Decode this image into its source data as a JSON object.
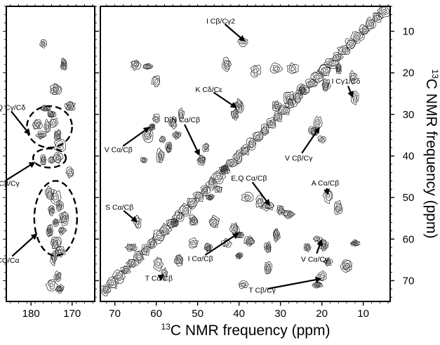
{
  "chart_data": [
    {
      "type": "heatmap",
      "panel": "left",
      "title": "",
      "xlabel": "",
      "ylabel": "",
      "x_ticks": [
        180,
        170
      ],
      "xlim": [
        186,
        164.5
      ],
      "ylim": [
        4,
        75
      ],
      "annotations": [
        {
          "text": "E,Q Cγ/Cδ",
          "x": 175.5,
          "y": 33
        },
        {
          "text": "D,N Cβ/Cγ",
          "x": 175.5,
          "y": 40.5
        },
        {
          "text": "CO/Cα",
          "x": 174,
          "y": 55
        }
      ],
      "peak_regions": [
        {
          "label": "E,Q Cγ/Cδ",
          "cx": 175.5,
          "cy": 33,
          "rx": 5.5,
          "ry": 5
        },
        {
          "label": "D,N Cβ/Cγ",
          "cx": 175.5,
          "cy": 40.5,
          "rx": 4,
          "ry": 2.3
        },
        {
          "label": "CO/Cα",
          "cx": 174,
          "cy": 55,
          "rx": 5.2,
          "ry": 9
        }
      ],
      "peaks": [
        [
          176,
          33
        ],
        [
          174.5,
          32
        ],
        [
          177.5,
          35
        ],
        [
          175,
          30
        ],
        [
          173.5,
          35
        ],
        [
          178.5,
          32.5
        ],
        [
          176.5,
          28.5
        ],
        [
          173,
          37.5
        ],
        [
          175,
          41
        ],
        [
          177,
          41
        ],
        [
          173.5,
          40.5
        ],
        [
          174,
          50
        ],
        [
          173,
          52
        ],
        [
          175,
          53
        ],
        [
          174,
          56
        ],
        [
          172.5,
          58
        ],
        [
          175.5,
          58
        ],
        [
          174,
          61
        ],
        [
          173,
          63
        ],
        [
          175.5,
          49
        ],
        [
          172,
          55
        ],
        [
          174.5,
          64.5
        ],
        [
          173.5,
          69
        ],
        [
          173,
          72
        ],
        [
          175,
          71
        ],
        [
          177,
          13
        ],
        [
          172,
          18
        ],
        [
          174,
          24
        ],
        [
          170.5,
          28
        ],
        [
          170.5,
          44
        ]
      ]
    },
    {
      "type": "heatmap",
      "panel": "right",
      "title": "",
      "xlabel": "13C NMR frequency (ppm)",
      "ylabel": "13C NMR frequency (ppm)",
      "x_ticks": [
        70,
        60,
        50,
        40,
        30,
        20,
        10
      ],
      "y_ticks": [
        10,
        20,
        30,
        40,
        50,
        60,
        70
      ],
      "xlim": [
        73.5,
        3.5
      ],
      "ylim": [
        4,
        75
      ],
      "diagonal": true,
      "annotations": [
        {
          "text": "I Cβ/Cγ2",
          "x": 38.5,
          "y": 12.5
        },
        {
          "text": "I Cγ1/Cδ",
          "x": 12.5,
          "y": 26
        },
        {
          "text": "K Cδ/Cε",
          "x": 40.5,
          "y": 28.5
        },
        {
          "text": "D,N Cα/Cβ",
          "x": 49.5,
          "y": 40
        },
        {
          "text": "V Cα/Cβ",
          "x": 61.5,
          "y": 33
        },
        {
          "text": "V Cβ/Cγ",
          "x": 20.5,
          "y": 33
        },
        {
          "text": "E,Q Cα/Cβ",
          "x": 32.5,
          "y": 52
        },
        {
          "text": "A Cα/Cβ",
          "x": 18.5,
          "y": 49.5
        },
        {
          "text": "S Cα/Cβ",
          "x": 64.5,
          "y": 56
        },
        {
          "text": "I Cα/Cβ",
          "x": 40,
          "y": 58.5
        },
        {
          "text": "V Cα/Cγ",
          "x": 20,
          "y": 60
        },
        {
          "text": "T Cα/Cβ",
          "x": 58,
          "y": 68.5
        },
        {
          "text": "T Cβ/Cγ",
          "x": 20,
          "y": 69.5
        }
      ],
      "peaks": [
        [
          39,
          12.5
        ],
        [
          12,
          26
        ],
        [
          40,
          28
        ],
        [
          41,
          30
        ],
        [
          48,
          38
        ],
        [
          49,
          41
        ],
        [
          61,
          33
        ],
        [
          62,
          35
        ],
        [
          60,
          31
        ],
        [
          58.5,
          36
        ],
        [
          21,
          32
        ],
        [
          22,
          34
        ],
        [
          20,
          36
        ],
        [
          33,
          52
        ],
        [
          30,
          53
        ],
        [
          35,
          51
        ],
        [
          28,
          54
        ],
        [
          18.5,
          49.5
        ],
        [
          16,
          52.5
        ],
        [
          64.5,
          56
        ],
        [
          41,
          57.5
        ],
        [
          40,
          59
        ],
        [
          43,
          61
        ],
        [
          21,
          60
        ],
        [
          19.5,
          61.5
        ],
        [
          23.5,
          62
        ],
        [
          58,
          68.5
        ],
        [
          59.5,
          66
        ],
        [
          20,
          69
        ],
        [
          21,
          71
        ],
        [
          56,
          32
        ],
        [
          55,
          35
        ],
        [
          54,
          30
        ],
        [
          57,
          38
        ],
        [
          59,
          40
        ],
        [
          63,
          41
        ],
        [
          65,
          18
        ],
        [
          62,
          18.5
        ],
        [
          60,
          22
        ],
        [
          43,
          18
        ],
        [
          36,
          19.5
        ],
        [
          31,
          19
        ],
        [
          27,
          19
        ],
        [
          16,
          19
        ],
        [
          12.5,
          21
        ],
        [
          19,
          23
        ],
        [
          25,
          24
        ],
        [
          28,
          26
        ],
        [
          31,
          28
        ],
        [
          37.5,
          60.5
        ],
        [
          47.5,
          62
        ],
        [
          51,
          61
        ],
        [
          66,
          62
        ],
        [
          40,
          64
        ],
        [
          55.5,
          56
        ],
        [
          51,
          55.5
        ],
        [
          46,
          56
        ],
        [
          43.5,
          43
        ],
        [
          33,
          62
        ],
        [
          31,
          59
        ],
        [
          12,
          61
        ],
        [
          14,
          66.5
        ],
        [
          18.5,
          65.5
        ],
        [
          33,
          67
        ],
        [
          39,
          71
        ],
        [
          54.5,
          65
        ],
        [
          45,
          48
        ],
        [
          47,
          50
        ],
        [
          38,
          50
        ]
      ]
    }
  ]
}
